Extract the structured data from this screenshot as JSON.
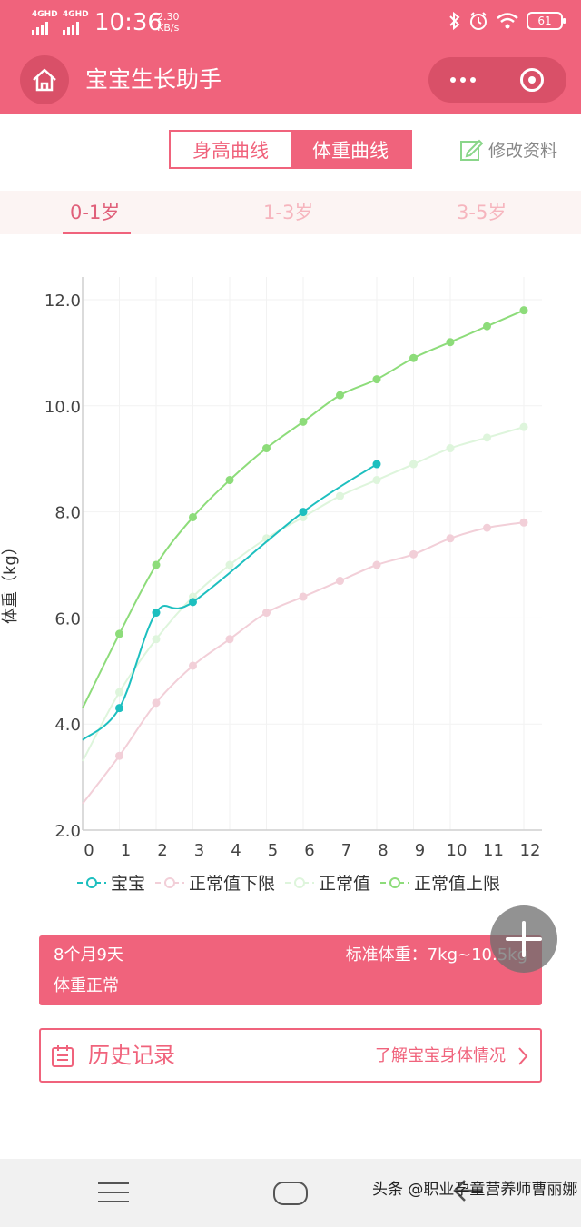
{
  "status_bar": {
    "network_1": "4GHD",
    "network_2": "4GHD",
    "time": "10:36",
    "speed_value": "2.30",
    "speed_unit": "KB/s",
    "battery": "61",
    "icons": [
      "bluetooth-icon",
      "alarm-icon",
      "wifi-icon",
      "battery-icon"
    ]
  },
  "title_bar": {
    "title": "宝宝生长助手",
    "icons": [
      "home-icon",
      "more-icon",
      "close-mini-program-icon"
    ]
  },
  "toggle": {
    "height_curve": "身高曲线",
    "weight_curve": "体重曲线",
    "selected": "体重曲线"
  },
  "edit_profile": {
    "label": "修改资料",
    "icon": "edit-icon"
  },
  "age_tabs": {
    "items": [
      "0-1岁",
      "1-3岁",
      "3-5岁"
    ],
    "selected": "0-1岁"
  },
  "chart_data": {
    "type": "line",
    "ylabel": "体重（kg）",
    "xlabel": "",
    "xlim": [
      0,
      12
    ],
    "ylim": [
      2.0,
      12.0
    ],
    "x_ticks": [
      "0",
      "1",
      "2",
      "3",
      "4",
      "5",
      "6",
      "7",
      "8",
      "9",
      "10",
      "11",
      "12"
    ],
    "y_ticks": [
      "2.0",
      "4.0",
      "6.0",
      "8.0",
      "10.0",
      "12.0"
    ],
    "grid": true,
    "legend_position": "bottom",
    "series": [
      {
        "name": "宝宝",
        "color": "#1dbfbf",
        "x": [
          0,
          1,
          2,
          3,
          6,
          8
        ],
        "y": [
          3.7,
          4.3,
          6.1,
          6.3,
          8.0,
          8.9
        ]
      },
      {
        "name": "正常值下限",
        "color": "#f2cfd8",
        "x": [
          0,
          1,
          2,
          3,
          4,
          5,
          6,
          7,
          8,
          9,
          10,
          11,
          12
        ],
        "y": [
          2.5,
          3.4,
          4.4,
          5.1,
          5.6,
          6.1,
          6.4,
          6.7,
          7.0,
          7.2,
          7.5,
          7.7,
          7.8
        ]
      },
      {
        "name": "正常值",
        "color": "#def5dc",
        "x": [
          0,
          1,
          2,
          3,
          4,
          5,
          6,
          7,
          8,
          9,
          10,
          11,
          12
        ],
        "y": [
          3.3,
          4.6,
          5.6,
          6.4,
          7.0,
          7.5,
          7.9,
          8.3,
          8.6,
          8.9,
          9.2,
          9.4,
          9.6
        ]
      },
      {
        "name": "正常值上限",
        "color": "#8ddc7a",
        "x": [
          0,
          1,
          2,
          3,
          4,
          5,
          6,
          7,
          8,
          9,
          10,
          11,
          12
        ],
        "y": [
          4.3,
          5.7,
          7.0,
          7.9,
          8.6,
          9.2,
          9.7,
          10.2,
          10.5,
          10.9,
          11.2,
          11.5,
          11.8
        ]
      }
    ]
  },
  "info_card": {
    "age": "8个月9天",
    "standard": "标准体重：7kg~10.5kg",
    "status": "体重正常"
  },
  "fab": {
    "icon": "plus-icon"
  },
  "history": {
    "title": "历史记录",
    "link": "了解宝宝身体情况",
    "icons": [
      "calendar-icon",
      "chevron-right-icon"
    ]
  },
  "watermark": "头条 @职业孕童营养师曹丽娜",
  "colors": {
    "brand": "#f0637c",
    "brand_dark": "#d95068",
    "tab_bg": "#fcf4f3"
  }
}
